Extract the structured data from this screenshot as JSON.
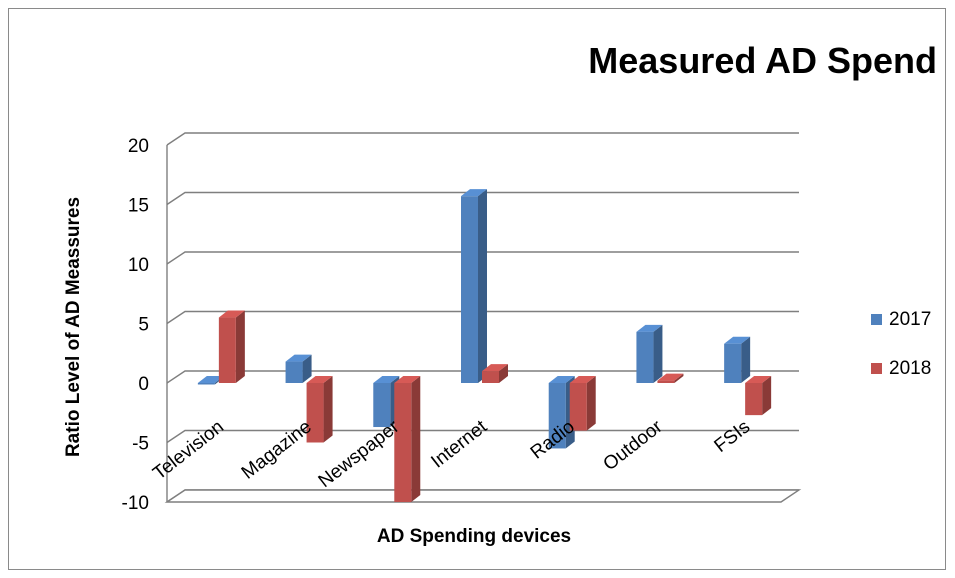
{
  "chart_data": {
    "type": "bar",
    "title": "Measured AD Spend",
    "xlabel": "AD Spending devices",
    "ylabel": "Ratio Level of AD Meassures",
    "categories": [
      "Television",
      "Magazine",
      "Newspaper",
      "Internet",
      "Radio",
      "Outdoor",
      "FSIs"
    ],
    "series": [
      {
        "name": "2017",
        "values": [
          0,
          1.8,
          -3.7,
          15.7,
          -5.5,
          4.3,
          3.3
        ],
        "color": "#4f81bd"
      },
      {
        "name": "2018",
        "values": [
          5.5,
          -5,
          -10,
          1,
          -4,
          0.2,
          -2.7
        ],
        "color": "#c0504d"
      }
    ],
    "yticks": [
      "20",
      "15",
      "10",
      "5",
      "0",
      "-5",
      "-10"
    ],
    "ylim": [
      -10,
      20
    ],
    "grid": true,
    "legend_position": "right",
    "three_d": true
  }
}
